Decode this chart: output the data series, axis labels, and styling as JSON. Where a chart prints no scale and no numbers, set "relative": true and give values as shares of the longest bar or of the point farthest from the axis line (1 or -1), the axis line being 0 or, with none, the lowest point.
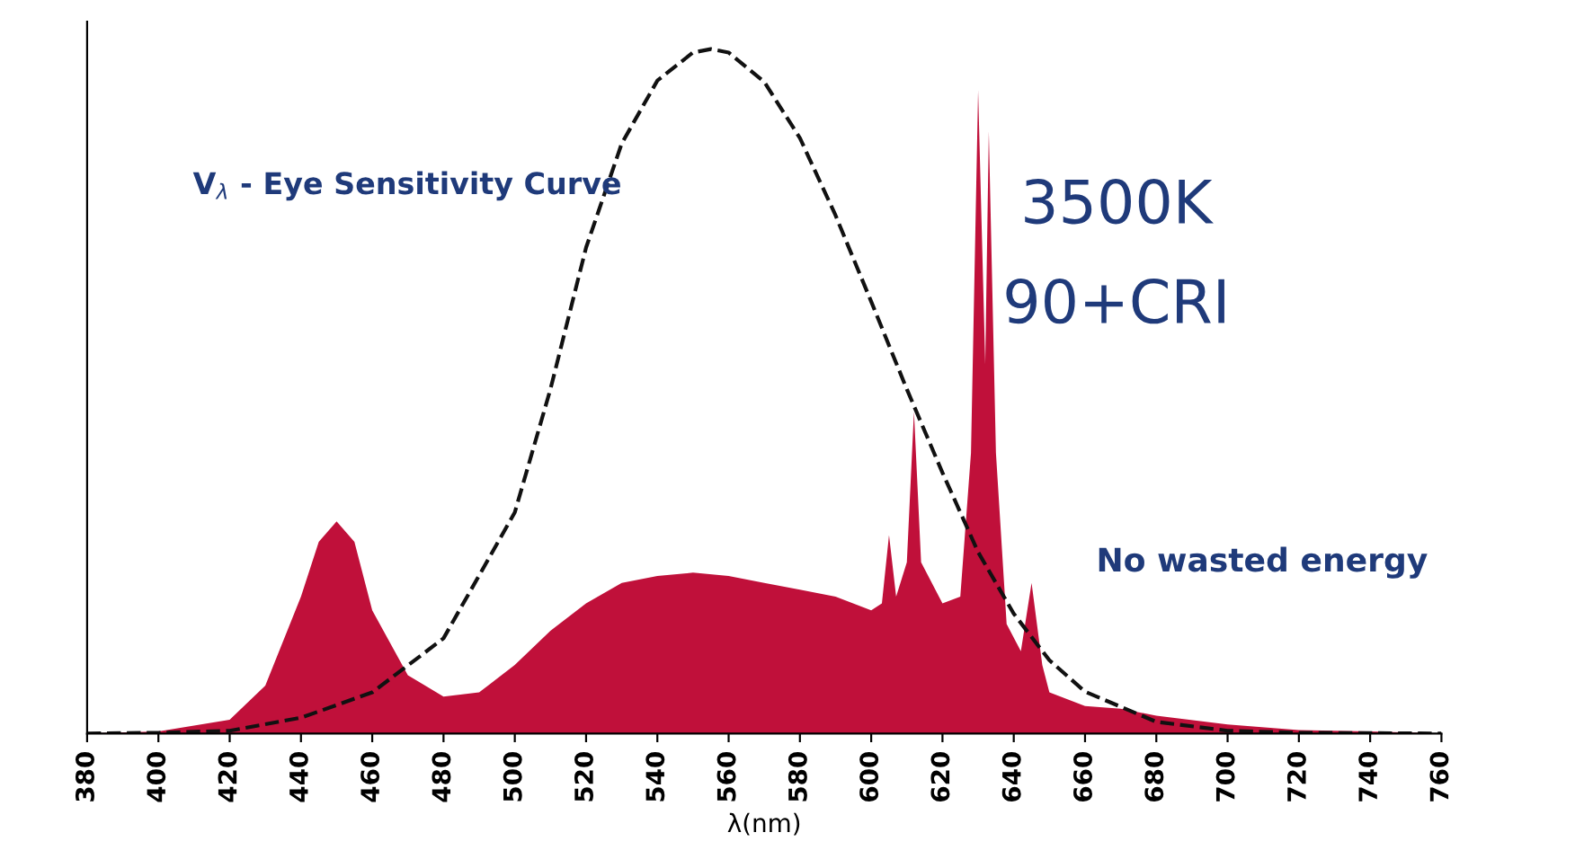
{
  "chart_data": {
    "type": "area",
    "relative": true,
    "xlabel": "λ(nm)",
    "xlim": [
      380,
      760
    ],
    "xticks": [
      380,
      400,
      420,
      440,
      460,
      480,
      500,
      520,
      540,
      560,
      580,
      600,
      620,
      640,
      660,
      680,
      700,
      720,
      740,
      760
    ],
    "tick_labels": "x",
    "grid": false,
    "series": [
      {
        "color": "#c0103a",
        "x": [
          380,
          400,
          420,
          430,
          440,
          445,
          450,
          455,
          460,
          470,
          480,
          490,
          500,
          510,
          520,
          530,
          540,
          550,
          560,
          570,
          580,
          590,
          600,
          603,
          605,
          607,
          610,
          612,
          614,
          620,
          625,
          628,
          630,
          632,
          633,
          635,
          638,
          642,
          645,
          648,
          650,
          660,
          670,
          680,
          700,
          720,
          740,
          760
        ],
        "values": [
          0,
          0.003,
          0.02,
          0.07,
          0.2,
          0.28,
          0.31,
          0.28,
          0.18,
          0.085,
          0.054,
          0.06,
          0.1,
          0.15,
          0.19,
          0.22,
          0.23,
          0.235,
          0.23,
          0.22,
          0.21,
          0.2,
          0.18,
          0.19,
          0.29,
          0.2,
          0.25,
          0.47,
          0.25,
          0.19,
          0.2,
          0.41,
          0.94,
          0.54,
          0.88,
          0.41,
          0.16,
          0.12,
          0.22,
          0.1,
          0.06,
          0.04,
          0.036,
          0.026,
          0.013,
          0.005,
          0.003,
          0
        ]
      },
      {
        "type": "line",
        "name": "V$_{λ}$ - Eye Sensitivity Curve",
        "color": "#111111",
        "line_style": "dashed",
        "x": [
          380,
          400,
          420,
          440,
          460,
          480,
          500,
          510,
          520,
          530,
          540,
          550,
          555,
          560,
          570,
          580,
          590,
          600,
          610,
          620,
          630,
          640,
          650,
          660,
          680,
          700,
          720,
          760
        ],
        "values": [
          0,
          0.001,
          0.004,
          0.023,
          0.06,
          0.139,
          0.323,
          0.503,
          0.71,
          0.862,
          0.954,
          0.995,
          1,
          0.995,
          0.952,
          0.87,
          0.757,
          0.631,
          0.503,
          0.381,
          0.265,
          0.175,
          0.107,
          0.061,
          0.017,
          0.004,
          0.001,
          0
        ]
      }
    ],
    "annotations": [
      "3500K",
      "90+CRI",
      "No wasted energy"
    ]
  }
}
